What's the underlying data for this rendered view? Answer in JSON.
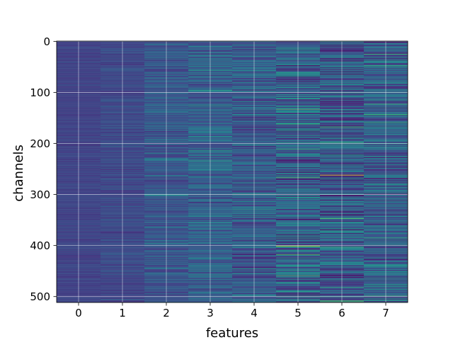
{
  "chart_data": {
    "type": "heatmap",
    "xlabel": "features",
    "ylabel": "channels",
    "x_categories": [
      "0",
      "1",
      "2",
      "3",
      "4",
      "5",
      "6",
      "7"
    ],
    "y_ticks": [
      0,
      100,
      200,
      300,
      400,
      500
    ],
    "y_tick_labels": [
      "0",
      "100",
      "200",
      "300",
      "400",
      "500"
    ],
    "ylim": [
      511.5,
      -0.5
    ],
    "xlim": [
      -0.5,
      7.5
    ],
    "num_channels": 512,
    "grid": true,
    "colormap": "viridis",
    "base_level_per_feature": [
      0.2,
      0.22,
      0.27,
      0.3,
      0.28,
      0.3,
      0.28,
      0.3
    ],
    "variation_per_feature": [
      0.04,
      0.07,
      0.12,
      0.16,
      0.17,
      0.24,
      0.24,
      0.22
    ],
    "notable_cells": [
      {
        "feature": 6,
        "channel": 262,
        "level": 1.0
      },
      {
        "feature": 5,
        "channel": 401,
        "level": 0.9
      },
      {
        "feature": 5,
        "channel": 490,
        "level": 0.6
      },
      {
        "feature": 6,
        "channel": 222,
        "level": 0.55
      },
      {
        "feature": 7,
        "channel": 476,
        "level": 0.55
      },
      {
        "feature": 5,
        "channel": 62,
        "level": 0.5
      },
      {
        "feature": 6,
        "channel": 107,
        "level": 0.5
      }
    ]
  }
}
